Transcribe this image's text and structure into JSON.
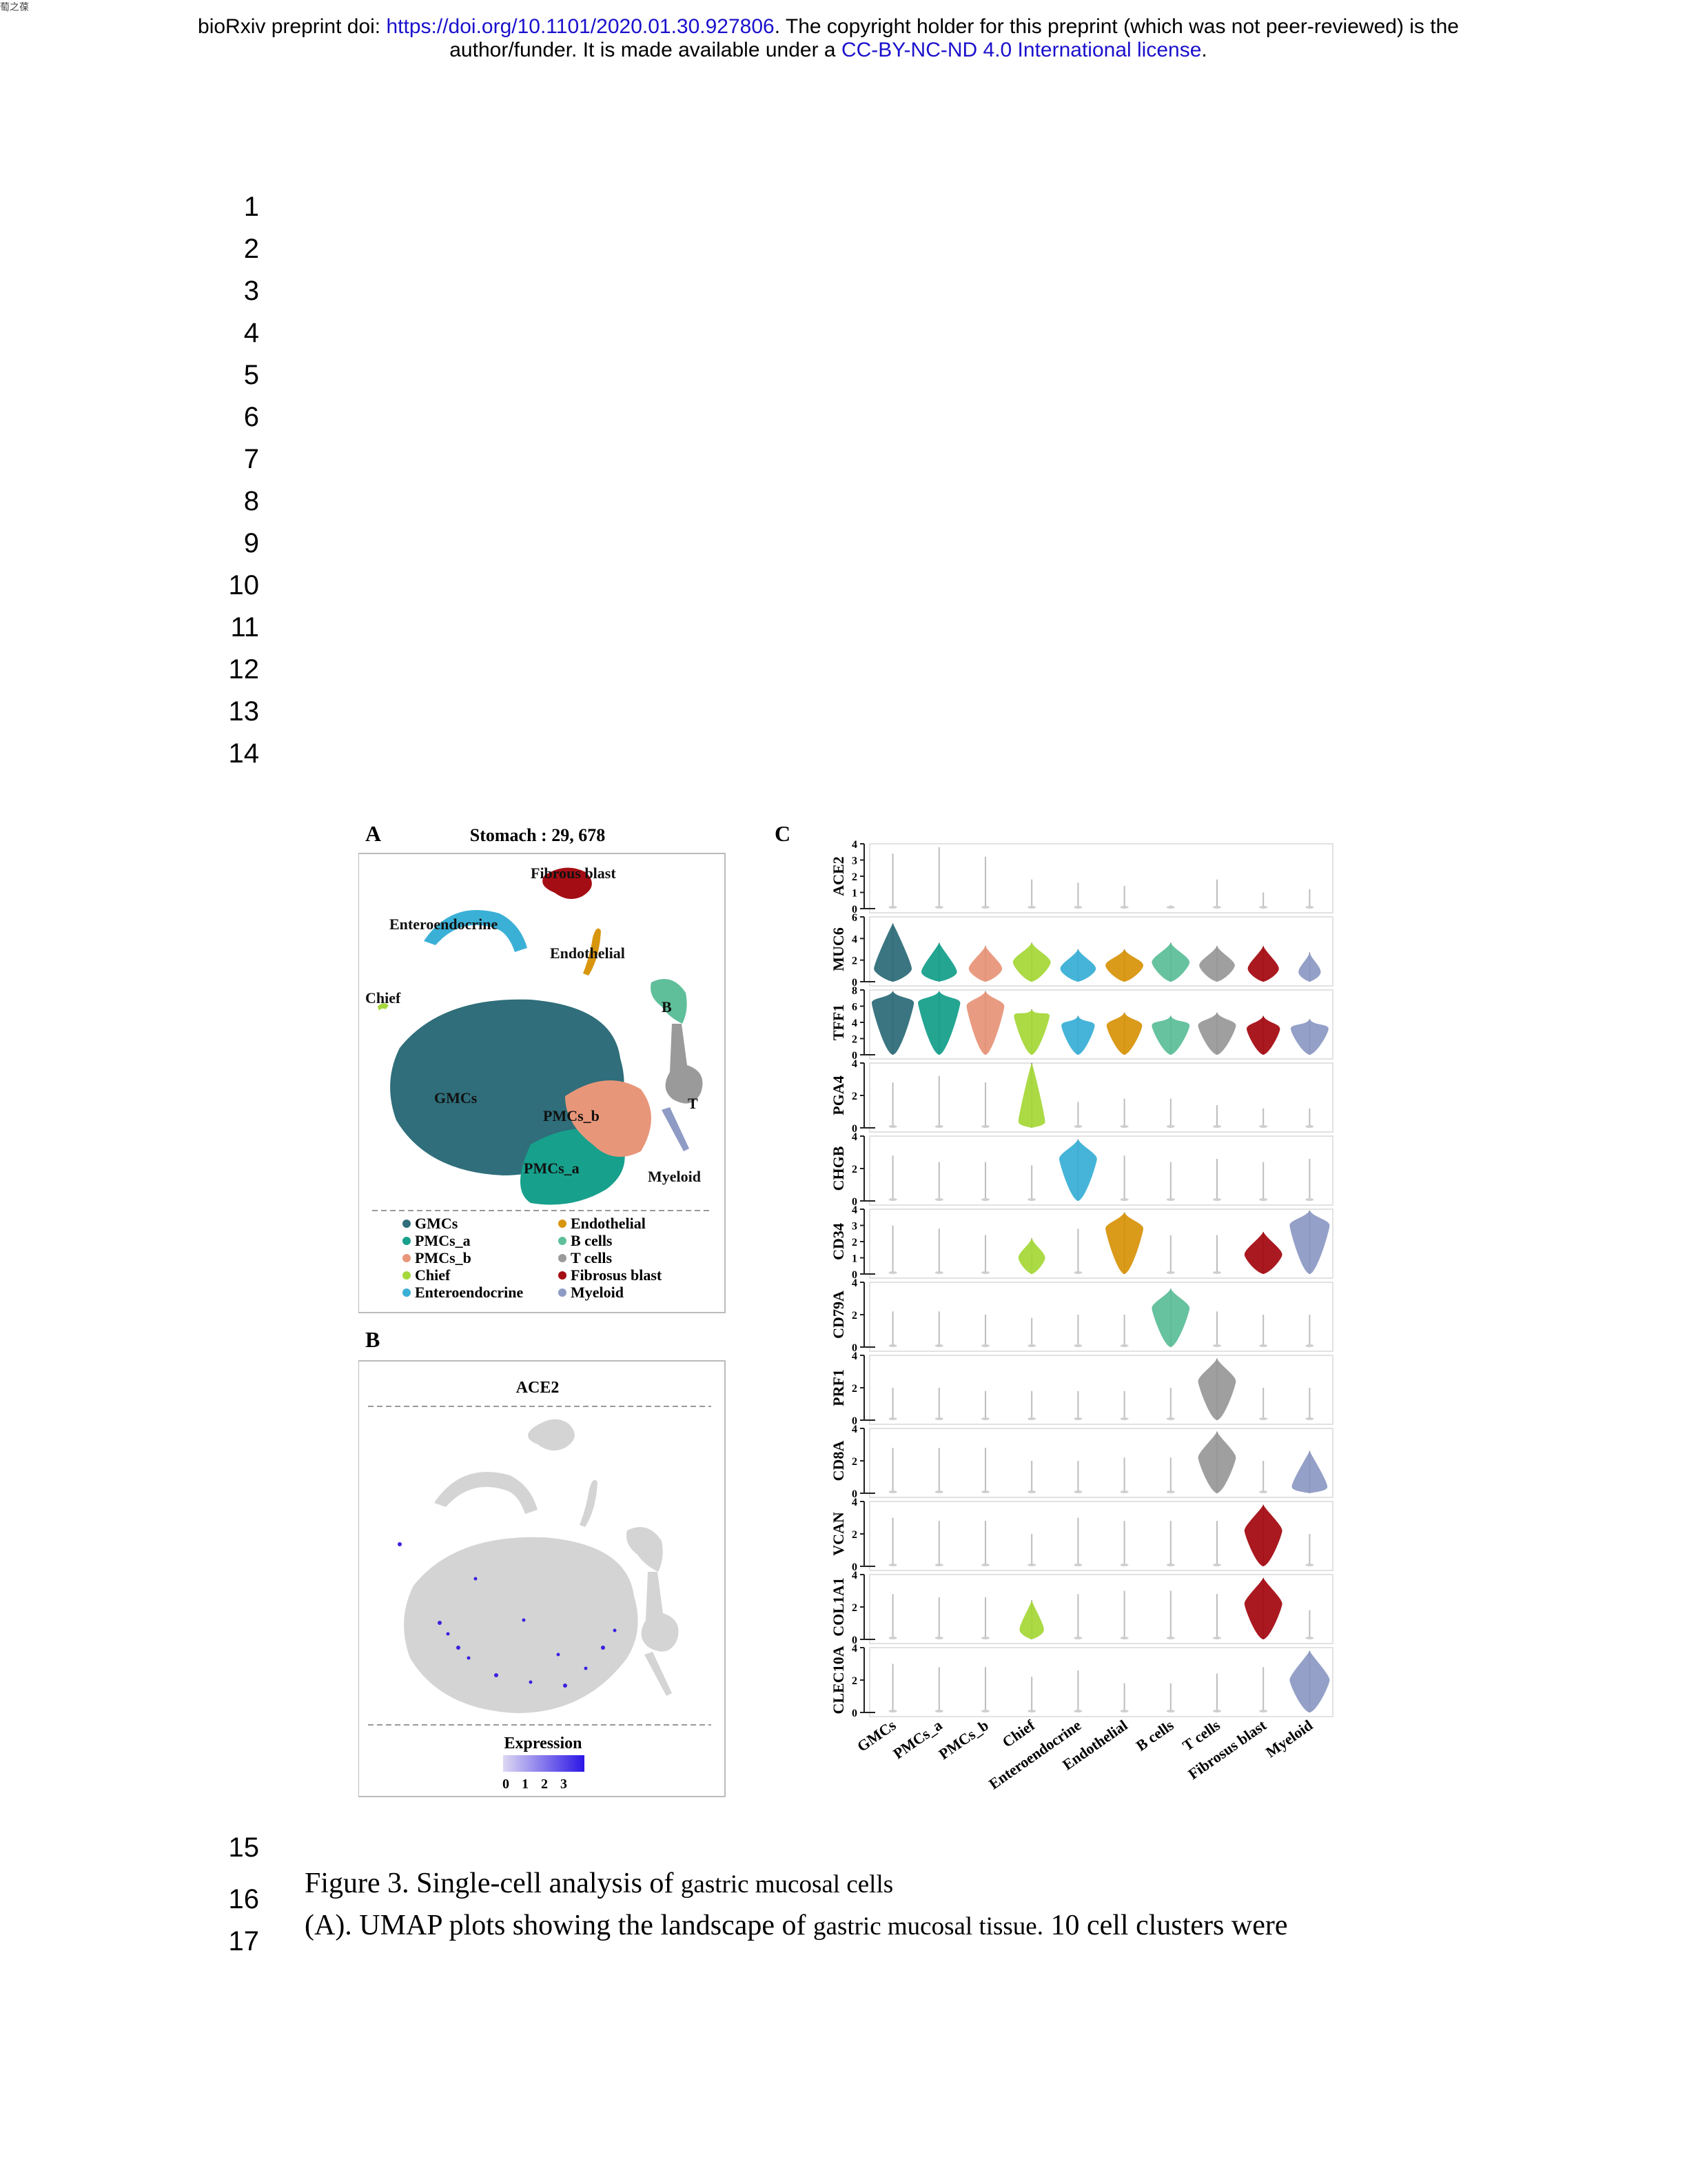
{
  "corner_mark": "萄之葆",
  "header": {
    "prefix": "bioRxiv preprint doi: ",
    "doi_link": "https://doi.org/10.1101/2020.01.30.927806",
    "middle": ". The copyright holder for this preprint (which was not peer-reviewed) is the",
    "line2_prefix": "author/funder. It is made available under a ",
    "license_link": "CC-BY-NC-ND 4.0 International license",
    "line2_suffix": "."
  },
  "line_numbers": [
    "1",
    "2",
    "3",
    "4",
    "5",
    "6",
    "7",
    "8",
    "9",
    "10",
    "11",
    "12",
    "13",
    "14",
    "15",
    "16",
    "17"
  ],
  "figure": {
    "panel_a": {
      "letter": "A",
      "title": "Stomach : 29, 678",
      "cluster_labels": [
        "Fibrous blast",
        "Enteroendocrine",
        "Endothelial",
        "Chief",
        "B",
        "GMCs",
        "PMCs_b",
        "T",
        "PMCs_a",
        "Myeloid"
      ],
      "legend": [
        {
          "label": "GMCs",
          "color": "#2f6e7a"
        },
        {
          "label": "PMCs_a",
          "color": "#17a08c"
        },
        {
          "label": "PMCs_b",
          "color": "#e8967a"
        },
        {
          "label": "Chief",
          "color": "#a6d83b"
        },
        {
          "label": "Enteroendocrine",
          "color": "#3bb0d6"
        },
        {
          "label": "Endothelial",
          "color": "#d8950e"
        },
        {
          "label": "B cells",
          "color": "#5fbf9a"
        },
        {
          "label": "T cells",
          "color": "#9a9a9a"
        },
        {
          "label": "Fibrosus blast",
          "color": "#a50d14"
        },
        {
          "label": "Myeloid",
          "color": "#8e9bc4"
        }
      ]
    },
    "panel_b": {
      "letter": "B",
      "title": "ACE2",
      "legend_title": "Expression",
      "legend_ticks": [
        "0",
        "1",
        "2",
        "3"
      ],
      "scale_colors": [
        "#ddd8f2",
        "#2b16e6"
      ]
    },
    "panel_c": {
      "letter": "C",
      "genes": [
        {
          "name": "ACE2",
          "ticks": [
            "0",
            "1",
            "2",
            "3",
            "4"
          ],
          "ymax": 4,
          "peaks": [
            0.05,
            0.05,
            0.05,
            0.1,
            0.05,
            0.05,
            0.05,
            0.05,
            0.05,
            0.05
          ],
          "widths": [
            0.06,
            0.06,
            0.06,
            0.1,
            0.06,
            0.06,
            0.06,
            0.06,
            0.06,
            0.06
          ],
          "tops": [
            0.85,
            0.95,
            0.8,
            0.45,
            0.4,
            0.35,
            0.05,
            0.45,
            0.25,
            0.3
          ]
        },
        {
          "name": "MUC6",
          "ticks": [
            "0",
            "2",
            "4",
            "6"
          ],
          "ymax": 6,
          "peaks": [
            0.2,
            0.15,
            0.2,
            0.3,
            0.2,
            0.25,
            0.3,
            0.25,
            0.2,
            0.15
          ],
          "widths": [
            0.85,
            0.8,
            0.75,
            0.85,
            0.8,
            0.85,
            0.85,
            0.8,
            0.7,
            0.5
          ],
          "tops": [
            0.9,
            0.6,
            0.55,
            0.6,
            0.5,
            0.5,
            0.6,
            0.55,
            0.55,
            0.45
          ]
        },
        {
          "name": "TFF1",
          "ticks": [
            "0",
            "2",
            "4",
            "6",
            "8"
          ],
          "ymax": 8,
          "peaks": [
            0.8,
            0.8,
            0.75,
            0.6,
            0.45,
            0.45,
            0.45,
            0.45,
            0.4,
            0.4
          ],
          "widths": [
            0.95,
            0.95,
            0.85,
            0.8,
            0.75,
            0.8,
            0.85,
            0.85,
            0.75,
            0.85
          ],
          "tops": [
            0.98,
            0.98,
            0.98,
            0.7,
            0.6,
            0.65,
            0.6,
            0.65,
            0.6,
            0.55
          ]
        },
        {
          "name": "PGA4",
          "ticks": [
            "0",
            "2",
            "4"
          ],
          "ymax": 4,
          "peaks": [
            0.02,
            0.02,
            0.02,
            0.1,
            0.02,
            0.02,
            0.02,
            0.02,
            0.02,
            0.02
          ],
          "widths": [
            0.05,
            0.05,
            0.05,
            0.6,
            0.05,
            0.05,
            0.05,
            0.05,
            0.05,
            0.05
          ],
          "tops": [
            0.7,
            0.8,
            0.7,
            1.0,
            0.4,
            0.45,
            0.45,
            0.35,
            0.3,
            0.3
          ]
        },
        {
          "name": "CHGB",
          "ticks": [
            "0",
            "2",
            "4"
          ],
          "ymax": 4,
          "peaks": [
            0.02,
            0.02,
            0.02,
            0.02,
            0.65,
            0.02,
            0.02,
            0.02,
            0.02,
            0.02
          ],
          "widths": [
            0.05,
            0.05,
            0.05,
            0.05,
            0.85,
            0.05,
            0.05,
            0.05,
            0.05,
            0.05
          ],
          "tops": [
            0.7,
            0.6,
            0.6,
            0.55,
            0.95,
            0.7,
            0.6,
            0.65,
            0.6,
            0.65
          ]
        },
        {
          "name": "CD34",
          "ticks": [
            "0",
            "1",
            "2",
            "3",
            "4"
          ],
          "ymax": 4,
          "peaks": [
            0.02,
            0.02,
            0.02,
            0.25,
            0.02,
            0.7,
            0.02,
            0.02,
            0.3,
            0.75
          ],
          "widths": [
            0.05,
            0.05,
            0.05,
            0.6,
            0.05,
            0.85,
            0.05,
            0.05,
            0.85,
            0.9
          ],
          "tops": [
            0.75,
            0.7,
            0.6,
            0.55,
            0.7,
            0.95,
            0.6,
            0.6,
            0.65,
            0.98
          ]
        },
        {
          "name": "CD79A",
          "ticks": [
            "0",
            "2",
            "4"
          ],
          "ymax": 4,
          "peaks": [
            0.02,
            0.02,
            0.02,
            0.02,
            0.02,
            0.02,
            0.6,
            0.02,
            0.02,
            0.02
          ],
          "widths": [
            0.05,
            0.05,
            0.05,
            0.05,
            0.05,
            0.05,
            0.85,
            0.05,
            0.05,
            0.05
          ],
          "tops": [
            0.55,
            0.55,
            0.5,
            0.45,
            0.5,
            0.5,
            0.9,
            0.55,
            0.5,
            0.5
          ]
        },
        {
          "name": "PRF1",
          "ticks": [
            "0",
            "2",
            "4"
          ],
          "ymax": 4,
          "peaks": [
            0.02,
            0.02,
            0.02,
            0.02,
            0.02,
            0.02,
            0.02,
            0.6,
            0.02,
            0.02
          ],
          "widths": [
            0.05,
            0.05,
            0.05,
            0.05,
            0.05,
            0.05,
            0.05,
            0.85,
            0.05,
            0.05
          ],
          "tops": [
            0.5,
            0.5,
            0.45,
            0.45,
            0.45,
            0.45,
            0.5,
            0.95,
            0.5,
            0.5
          ]
        },
        {
          "name": "CD8A",
          "ticks": [
            "0",
            "2",
            "4"
          ],
          "ymax": 4,
          "peaks": [
            0.02,
            0.02,
            0.02,
            0.02,
            0.02,
            0.02,
            0.02,
            0.55,
            0.02,
            0.1
          ],
          "widths": [
            0.05,
            0.05,
            0.05,
            0.05,
            0.05,
            0.05,
            0.05,
            0.85,
            0.05,
            0.8
          ],
          "tops": [
            0.7,
            0.7,
            0.7,
            0.5,
            0.5,
            0.55,
            0.55,
            0.95,
            0.5,
            0.65
          ]
        },
        {
          "name": "VCAN",
          "ticks": [
            "0",
            "2",
            "4"
          ],
          "ymax": 4,
          "peaks": [
            0.02,
            0.02,
            0.02,
            0.02,
            0.02,
            0.02,
            0.02,
            0.02,
            0.55,
            0.02
          ],
          "widths": [
            0.05,
            0.05,
            0.05,
            0.05,
            0.05,
            0.05,
            0.05,
            0.05,
            0.85,
            0.05
          ],
          "tops": [
            0.75,
            0.7,
            0.7,
            0.5,
            0.75,
            0.7,
            0.7,
            0.7,
            0.95,
            0.5
          ]
        },
        {
          "name": "COL1A1",
          "ticks": [
            "0",
            "2",
            "4"
          ],
          "ymax": 4,
          "peaks": [
            0.02,
            0.02,
            0.02,
            0.15,
            0.02,
            0.02,
            0.02,
            0.02,
            0.55,
            0.02
          ],
          "widths": [
            0.05,
            0.05,
            0.05,
            0.55,
            0.05,
            0.05,
            0.05,
            0.05,
            0.85,
            0.05
          ],
          "tops": [
            0.7,
            0.65,
            0.65,
            0.6,
            0.7,
            0.75,
            0.75,
            0.7,
            0.95,
            0.45
          ]
        },
        {
          "name": "CLEC10A",
          "ticks": [
            "0",
            "2",
            "4"
          ],
          "ymax": 4,
          "peaks": [
            0.02,
            0.02,
            0.02,
            0.02,
            0.02,
            0.02,
            0.02,
            0.02,
            0.02,
            0.5
          ],
          "widths": [
            0.05,
            0.05,
            0.05,
            0.05,
            0.05,
            0.05,
            0.05,
            0.05,
            0.05,
            0.9
          ],
          "tops": [
            0.75,
            0.7,
            0.7,
            0.55,
            0.65,
            0.45,
            0.45,
            0.6,
            0.7,
            0.95
          ]
        }
      ],
      "cell_types": [
        "GMCs",
        "PMCs_a",
        "PMCs_b",
        "Chief",
        "Enteroendocrine",
        "Endothelial",
        "B cells",
        "T cells",
        "Fibrosus blast",
        "Myeloid"
      ]
    }
  },
  "caption": {
    "line16_a": "Figure 3. Single-cell analysis of ",
    "line16_b": "gastric mucosal cells",
    "line17_a": "(A). UMAP plots showing the landscape of ",
    "line17_b": "gastric mucosal tissue.",
    "line17_c": " 10 cell clusters were"
  }
}
